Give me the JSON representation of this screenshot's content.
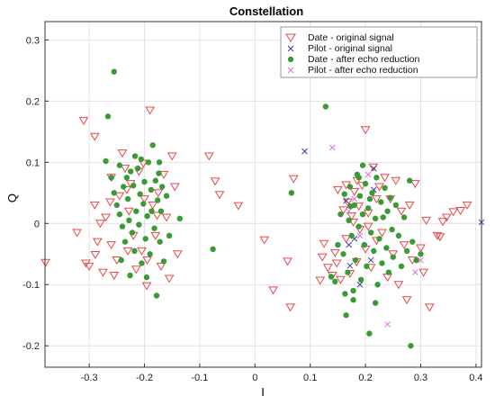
{
  "chart_data": {
    "type": "scatter",
    "title": "Constellation",
    "xlabel": "I",
    "ylabel": "Q",
    "xlim": [
      -0.38,
      0.41
    ],
    "ylim": [
      -0.235,
      0.33
    ],
    "xticks": [
      -0.3,
      -0.2,
      -0.1,
      0,
      0.1,
      0.2,
      0.3,
      0.4
    ],
    "xtick_labels": [
      "-0.3",
      "-0.2",
      "-0.1",
      "0",
      "0.1",
      "0.2",
      "0.3",
      "0.4"
    ],
    "yticks": [
      -0.2,
      -0.1,
      0,
      0.1,
      0.2,
      0.3
    ],
    "ytick_labels": [
      "-0.2",
      "-0.1",
      "0",
      "0.1",
      "0.2",
      "0.3"
    ],
    "grid": true,
    "legend_position": "top-right",
    "series": [
      {
        "name": "Date - original signal",
        "marker": "triangle-down",
        "color": "#e8474a",
        "points": [
          [
            -0.379,
            -0.064
          ],
          [
            -0.31,
            0.168
          ],
          [
            -0.29,
            0.142
          ],
          [
            -0.3,
            -0.07
          ],
          [
            -0.322,
            -0.015
          ],
          [
            -0.306,
            -0.065
          ],
          [
            -0.289,
            -0.051
          ],
          [
            -0.285,
            -0.03
          ],
          [
            -0.28,
            0.0
          ],
          [
            -0.275,
            -0.08
          ],
          [
            -0.27,
            0.01
          ],
          [
            -0.26,
            0.075
          ],
          [
            -0.26,
            -0.035
          ],
          [
            -0.25,
            -0.06
          ],
          [
            -0.245,
            0.045
          ],
          [
            -0.24,
            0.115
          ],
          [
            -0.235,
            0.09
          ],
          [
            -0.23,
            -0.045
          ],
          [
            -0.228,
            0.02
          ],
          [
            -0.225,
            0.065
          ],
          [
            -0.22,
            -0.02
          ],
          [
            -0.215,
            -0.075
          ],
          [
            -0.21,
            0.085
          ],
          [
            -0.205,
            -0.045
          ],
          [
            -0.2,
            0.04
          ],
          [
            -0.195,
            -0.06
          ],
          [
            -0.19,
            0.185
          ],
          [
            -0.185,
            0.03
          ],
          [
            -0.18,
            -0.02
          ],
          [
            -0.175,
            0.05
          ],
          [
            -0.17,
            -0.07
          ],
          [
            -0.165,
            0.08
          ],
          [
            -0.16,
            0.01
          ],
          [
            -0.155,
            -0.09
          ],
          [
            -0.15,
            0.11
          ],
          [
            -0.145,
            0.06
          ],
          [
            -0.14,
            -0.05
          ],
          [
            -0.29,
            0.03
          ],
          [
            -0.255,
            -0.085
          ],
          [
            -0.202,
            0.098
          ],
          [
            -0.232,
            0.055
          ],
          [
            -0.262,
            0.035
          ],
          [
            -0.196,
            -0.102
          ],
          [
            -0.177,
            0.013
          ],
          [
            -0.083,
            0.11
          ],
          [
            -0.072,
            0.069
          ],
          [
            -0.064,
            0.047
          ],
          [
            -0.03,
            0.029
          ],
          [
            0.017,
            -0.027
          ],
          [
            0.033,
            -0.109
          ],
          [
            0.059,
            -0.062
          ],
          [
            0.064,
            -0.137
          ],
          [
            0.07,
            0.073
          ],
          [
            0.118,
            -0.093
          ],
          [
            0.122,
            -0.055
          ],
          [
            0.125,
            -0.033
          ],
          [
            0.132,
            -0.072
          ],
          [
            0.14,
            -0.085
          ],
          [
            0.145,
            -0.048
          ],
          [
            0.15,
            0.055
          ],
          [
            0.155,
            -0.092
          ],
          [
            0.16,
            0.022
          ],
          [
            0.165,
            -0.025
          ],
          [
            0.168,
            0.035
          ],
          [
            0.172,
            -0.082
          ],
          [
            0.175,
            0.012
          ],
          [
            0.18,
            0.052
          ],
          [
            0.184,
            -0.063
          ],
          [
            0.188,
            0.028
          ],
          [
            0.19,
            -0.01
          ],
          [
            0.194,
            0.062
          ],
          [
            0.2,
            -0.042
          ],
          [
            0.2,
            0.153
          ],
          [
            0.205,
            0.017
          ],
          [
            0.21,
            -0.072
          ],
          [
            0.214,
            0.092
          ],
          [
            0.22,
            -0.028
          ],
          [
            0.225,
            0.06
          ],
          [
            0.23,
            -0.015
          ],
          [
            0.235,
            0.075
          ],
          [
            0.24,
            -0.088
          ],
          [
            0.245,
            0.04
          ],
          [
            0.25,
            -0.05
          ],
          [
            0.255,
            0.07
          ],
          [
            0.26,
            -0.1
          ],
          [
            0.265,
            0.02
          ],
          [
            0.27,
            -0.035
          ],
          [
            0.275,
            -0.125
          ],
          [
            0.28,
            0.03
          ],
          [
            0.285,
            -0.06
          ],
          [
            0.29,
            0.065
          ],
          [
            0.3,
            -0.04
          ],
          [
            0.305,
            -0.08
          ],
          [
            0.31,
            0.005
          ],
          [
            0.316,
            -0.137
          ],
          [
            0.33,
            -0.02
          ],
          [
            0.335,
            -0.022
          ],
          [
            0.34,
            0.003
          ],
          [
            0.347,
            0.01
          ],
          [
            0.359,
            0.019
          ],
          [
            0.372,
            0.021
          ],
          [
            0.384,
            0.03
          ],
          [
            0.185,
            0.07
          ],
          [
            0.165,
            0.063
          ],
          [
            0.178,
            0.002
          ],
          [
            0.205,
            -0.005
          ],
          [
            0.148,
            -0.065
          ],
          [
            0.22,
            0.04
          ]
        ]
      },
      {
        "name": "Pilot - original signal",
        "marker": "x",
        "color": "#3b3b9c",
        "points": [
          [
            0.09,
            0.118
          ],
          [
            0.165,
            0.037
          ],
          [
            0.17,
            -0.035
          ],
          [
            0.172,
            -0.069
          ],
          [
            0.18,
            -0.025
          ],
          [
            0.19,
            -0.1
          ],
          [
            0.21,
            -0.06
          ],
          [
            0.215,
            0.09
          ],
          [
            0.215,
            0.055
          ],
          [
            0.41,
            0.002
          ]
        ]
      },
      {
        "name": "Date - after echo reduction",
        "marker": "circle",
        "color": "#3a9a35",
        "points": [
          [
            -0.255,
            0.248
          ],
          [
            -0.266,
            0.175
          ],
          [
            -0.27,
            0.102
          ],
          [
            -0.26,
            0.075
          ],
          [
            -0.255,
            0.05
          ],
          [
            -0.25,
            0.03
          ],
          [
            -0.245,
            0.015
          ],
          [
            -0.245,
            0.095
          ],
          [
            -0.24,
            -0.005
          ],
          [
            -0.238,
            0.06
          ],
          [
            -0.235,
            -0.03
          ],
          [
            -0.232,
            0.075
          ],
          [
            -0.23,
            0.04
          ],
          [
            -0.228,
            0.005
          ],
          [
            -0.225,
            0.085
          ],
          [
            -0.222,
            -0.015
          ],
          [
            -0.22,
            0.062
          ],
          [
            -0.218,
            -0.045
          ],
          [
            -0.215,
            0.02
          ],
          [
            -0.212,
            0.09
          ],
          [
            -0.21,
            -0.002
          ],
          [
            -0.208,
            0.048
          ],
          [
            -0.205,
            -0.065
          ],
          [
            -0.202,
            0.032
          ],
          [
            -0.2,
            0.068
          ],
          [
            -0.198,
            -0.025
          ],
          [
            -0.195,
            0.012
          ],
          [
            -0.193,
            0.1
          ],
          [
            -0.19,
            -0.05
          ],
          [
            -0.188,
            0.055
          ],
          [
            -0.185,
            0.128
          ],
          [
            -0.182,
            -0.008
          ],
          [
            -0.18,
            0.07
          ],
          [
            -0.178,
            -0.118
          ],
          [
            -0.176,
            0.038
          ],
          [
            -0.174,
            0.082
          ],
          [
            -0.172,
            -0.03
          ],
          [
            -0.17,
            0.02
          ],
          [
            -0.168,
            0.06
          ],
          [
            -0.165,
            -0.062
          ],
          [
            -0.16,
            0.045
          ],
          [
            -0.155,
            -0.02
          ],
          [
            -0.242,
            -0.06
          ],
          [
            -0.226,
            -0.085
          ],
          [
            -0.217,
            0.11
          ],
          [
            -0.206,
            0.105
          ],
          [
            -0.196,
            -0.088
          ],
          [
            -0.187,
            0.02
          ],
          [
            -0.173,
            0.1
          ],
          [
            -0.136,
            0.008
          ],
          [
            -0.076,
            -0.042
          ],
          [
            0.066,
            0.05
          ],
          [
            0.128,
            0.191
          ],
          [
            0.138,
            -0.087
          ],
          [
            0.145,
            -0.095
          ],
          [
            0.15,
            -0.035
          ],
          [
            0.155,
            0.015
          ],
          [
            0.16,
            -0.05
          ],
          [
            0.162,
            0.048
          ],
          [
            0.165,
            -0.15
          ],
          [
            0.168,
            -0.08
          ],
          [
            0.17,
            0.005
          ],
          [
            0.172,
            0.06
          ],
          [
            0.175,
            -0.02
          ],
          [
            0.178,
            -0.11
          ],
          [
            0.18,
            0.03
          ],
          [
            0.182,
            -0.06
          ],
          [
            0.185,
            0.08
          ],
          [
            0.188,
            -0.005
          ],
          [
            0.19,
            0.045
          ],
          [
            0.192,
            -0.092
          ],
          [
            0.195,
            0.015
          ],
          [
            0.198,
            -0.035
          ],
          [
            0.2,
            0.065
          ],
          [
            0.202,
            -0.07
          ],
          [
            0.205,
            0.025
          ],
          [
            0.207,
            -0.18
          ],
          [
            0.21,
            -0.015
          ],
          [
            0.212,
            0.05
          ],
          [
            0.215,
            -0.045
          ],
          [
            0.218,
            0.008
          ],
          [
            0.22,
            0.075
          ],
          [
            0.222,
            -0.1
          ],
          [
            0.225,
            -0.025
          ],
          [
            0.228,
            0.035
          ],
          [
            0.23,
            -0.065
          ],
          [
            0.232,
            0.01
          ],
          [
            0.235,
            0.058
          ],
          [
            0.238,
            -0.04
          ],
          [
            0.24,
            0.02
          ],
          [
            0.242,
            -0.08
          ],
          [
            0.245,
            0.042
          ],
          [
            0.248,
            -0.01
          ],
          [
            0.25,
            -0.055
          ],
          [
            0.255,
            0.03
          ],
          [
            0.26,
            -0.02
          ],
          [
            0.265,
            -0.07
          ],
          [
            0.27,
            0.01
          ],
          [
            0.275,
            -0.045
          ],
          [
            0.28,
            0.07
          ],
          [
            0.282,
            -0.2
          ],
          [
            0.285,
            -0.03
          ],
          [
            0.292,
            -0.06
          ],
          [
            0.3,
            -0.05
          ],
          [
            0.195,
            0.095
          ],
          [
            0.178,
            -0.125
          ],
          [
            0.218,
            -0.13
          ],
          [
            0.163,
            -0.115
          ],
          [
            0.188,
            0.075
          ],
          [
            0.208,
            0.04
          ],
          [
            0.173,
            0.028
          ]
        ]
      },
      {
        "name": "Pilot - after echo reduction",
        "marker": "x",
        "color": "#e36fd6",
        "points": [
          [
            0.14,
            0.124
          ],
          [
            0.18,
            0.04
          ],
          [
            0.19,
            -0.02
          ],
          [
            0.205,
            0.08
          ],
          [
            0.24,
            -0.165
          ],
          [
            0.29,
            -0.08
          ],
          [
            0.3,
            -0.06
          ],
          [
            0.17,
            0.02
          ]
        ]
      }
    ]
  }
}
